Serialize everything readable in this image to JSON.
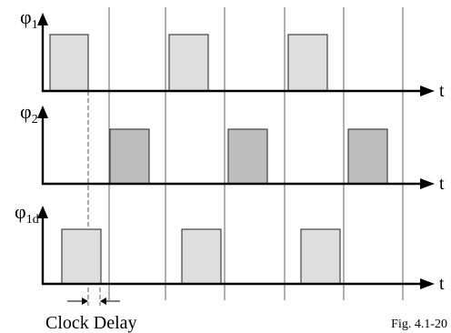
{
  "rows": [
    {
      "id": "phi1",
      "signal": "φ",
      "subscript": "1",
      "time_label": "t",
      "pulse_color": "#dedede"
    },
    {
      "id": "phi2",
      "signal": "φ",
      "subscript": "2",
      "time_label": "t",
      "pulse_color": "#bdbdbd"
    },
    {
      "id": "phi1d",
      "signal": "φ",
      "subscript": "1d",
      "time_label": "t",
      "pulse_color": "#dedede"
    }
  ],
  "annotation": {
    "clock_delay": "Clock Delay"
  },
  "caption": "Fig. 4.1-20",
  "colors": {
    "line": "#000000",
    "grid": "#707070"
  }
}
